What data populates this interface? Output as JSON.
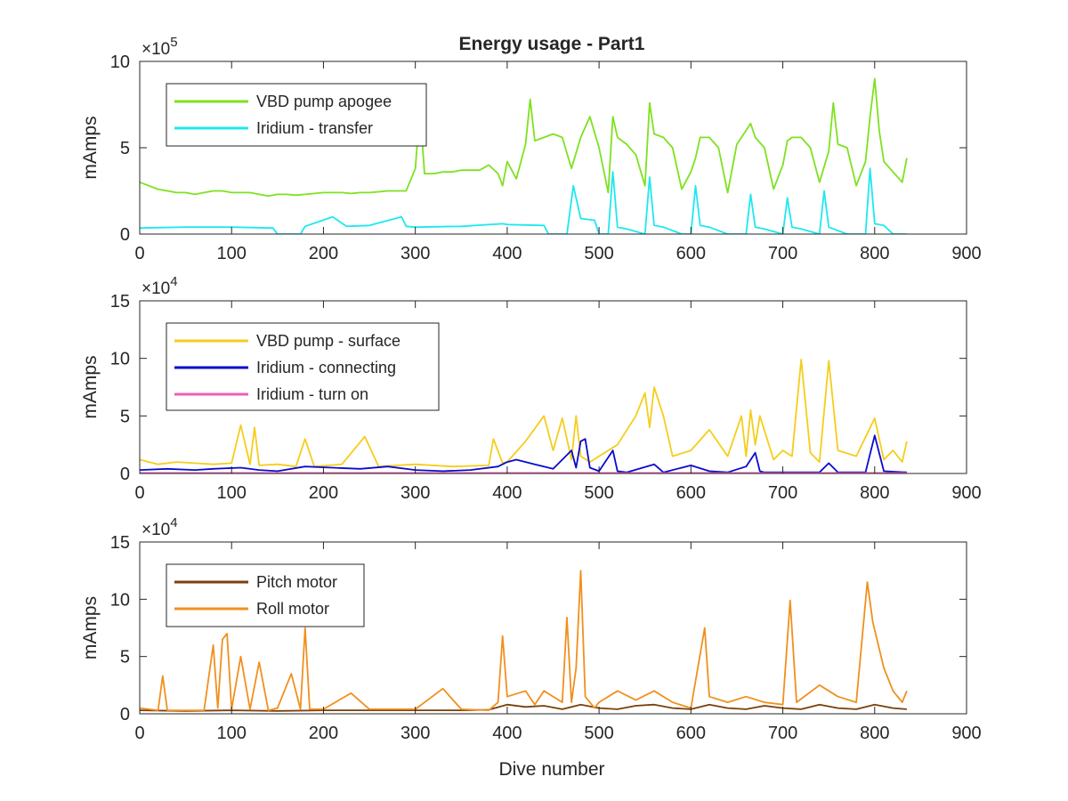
{
  "figure": {
    "title": "Energy usage - Part1",
    "xlabel": "Dive number"
  },
  "chart_data": [
    {
      "type": "line",
      "title": "Energy usage - Part1",
      "xlabel": "",
      "ylabel": "mAmps",
      "xlim": [
        0,
        900
      ],
      "ylim": [
        0,
        1000000
      ],
      "xticks": [
        0,
        100,
        200,
        300,
        400,
        500,
        600,
        700,
        800,
        900
      ],
      "yticks": [
        0,
        500000,
        1000000
      ],
      "ytick_labels": [
        "0",
        "5",
        "10"
      ],
      "y_multiplier": {
        "base": "×10",
        "exponent": "5"
      },
      "grid": false,
      "legend_position": "top-left",
      "series": [
        {
          "name": "VBD pump apogee",
          "color": "#7de21f",
          "x": [
            0,
            10,
            20,
            30,
            40,
            50,
            60,
            70,
            80,
            90,
            100,
            110,
            120,
            130,
            140,
            150,
            160,
            170,
            180,
            190,
            200,
            210,
            220,
            230,
            240,
            250,
            260,
            270,
            280,
            290,
            300,
            305,
            310,
            320,
            330,
            340,
            350,
            360,
            370,
            380,
            390,
            395,
            400,
            410,
            420,
            425,
            430,
            440,
            450,
            460,
            470,
            480,
            490,
            500,
            510,
            515,
            520,
            530,
            540,
            550,
            555,
            560,
            570,
            580,
            590,
            600,
            605,
            610,
            620,
            630,
            640,
            650,
            660,
            665,
            670,
            680,
            690,
            700,
            705,
            710,
            720,
            730,
            740,
            750,
            755,
            760,
            770,
            780,
            790,
            795,
            800,
            805,
            810,
            820,
            830,
            835
          ],
          "values": [
            300000,
            280000,
            260000,
            250000,
            240000,
            240000,
            230000,
            240000,
            250000,
            250000,
            240000,
            240000,
            240000,
            230000,
            220000,
            230000,
            230000,
            225000,
            230000,
            235000,
            240000,
            240000,
            240000,
            235000,
            240000,
            240000,
            245000,
            250000,
            250000,
            250000,
            380000,
            730000,
            350000,
            350000,
            360000,
            360000,
            370000,
            370000,
            370000,
            400000,
            350000,
            280000,
            420000,
            320000,
            520000,
            780000,
            540000,
            560000,
            580000,
            560000,
            380000,
            560000,
            680000,
            500000,
            240000,
            680000,
            560000,
            520000,
            460000,
            280000,
            760000,
            580000,
            560000,
            500000,
            260000,
            360000,
            440000,
            560000,
            560000,
            500000,
            240000,
            520000,
            600000,
            640000,
            560000,
            500000,
            260000,
            400000,
            540000,
            560000,
            560000,
            500000,
            300000,
            480000,
            760000,
            520000,
            500000,
            280000,
            420000,
            680000,
            900000,
            600000,
            420000,
            360000,
            300000,
            440000
          ]
        },
        {
          "name": "Iridium - transfer",
          "color": "#1de8f0",
          "x": [
            0,
            50,
            100,
            145,
            150,
            175,
            180,
            210,
            225,
            250,
            285,
            290,
            300,
            350,
            395,
            400,
            440,
            445,
            465,
            472,
            480,
            495,
            500,
            510,
            515,
            520,
            530,
            550,
            555,
            560,
            570,
            590,
            600,
            605,
            610,
            620,
            640,
            660,
            665,
            670,
            680,
            700,
            705,
            710,
            720,
            740,
            745,
            750,
            770,
            790,
            795,
            800,
            810,
            820,
            830,
            835
          ],
          "values": [
            35000,
            40000,
            40000,
            35000,
            0,
            0,
            45000,
            100000,
            45000,
            50000,
            100000,
            45000,
            40000,
            45000,
            60000,
            55000,
            50000,
            0,
            0,
            280000,
            90000,
            80000,
            0,
            0,
            360000,
            40000,
            30000,
            0,
            330000,
            50000,
            40000,
            0,
            0,
            280000,
            50000,
            40000,
            0,
            0,
            230000,
            40000,
            30000,
            0,
            210000,
            40000,
            30000,
            0,
            250000,
            40000,
            0,
            0,
            380000,
            60000,
            50000,
            0,
            0,
            0
          ]
        }
      ]
    },
    {
      "type": "line",
      "xlabel": "",
      "ylabel": "mAmps",
      "xlim": [
        0,
        900
      ],
      "ylim": [
        0,
        150000
      ],
      "xticks": [
        0,
        100,
        200,
        300,
        400,
        500,
        600,
        700,
        800,
        900
      ],
      "yticks": [
        0,
        50000,
        100000,
        150000
      ],
      "ytick_labels": [
        "0",
        "5",
        "10",
        "15"
      ],
      "y_multiplier": {
        "base": "×10",
        "exponent": "4"
      },
      "grid": false,
      "legend_position": "top-left",
      "series": [
        {
          "name": "VBD pump - surface",
          "color": "#f5cd1c",
          "x": [
            0,
            20,
            40,
            60,
            80,
            100,
            110,
            120,
            125,
            130,
            150,
            170,
            180,
            190,
            220,
            245,
            260,
            300,
            340,
            380,
            385,
            395,
            400,
            420,
            440,
            450,
            460,
            470,
            475,
            480,
            490,
            500,
            520,
            540,
            550,
            555,
            560,
            570,
            580,
            600,
            620,
            640,
            655,
            660,
            665,
            670,
            675,
            690,
            700,
            710,
            720,
            730,
            740,
            750,
            760,
            780,
            800,
            810,
            820,
            830,
            835
          ],
          "values": [
            12000,
            8000,
            10000,
            9000,
            8000,
            9000,
            42000,
            8000,
            40000,
            7000,
            8000,
            6000,
            30000,
            6000,
            8000,
            32000,
            6000,
            8000,
            6000,
            7000,
            30000,
            9000,
            10000,
            28000,
            50000,
            20000,
            48000,
            12000,
            50000,
            15000,
            10000,
            15000,
            25000,
            50000,
            70000,
            40000,
            75000,
            50000,
            15000,
            20000,
            38000,
            15000,
            50000,
            15000,
            55000,
            25000,
            50000,
            12000,
            20000,
            15000,
            99000,
            18000,
            10000,
            98000,
            20000,
            15000,
            48000,
            12000,
            20000,
            10000,
            28000
          ]
        },
        {
          "name": "Iridium - connecting",
          "color": "#0a0ad0",
          "x": [
            0,
            30,
            60,
            80,
            110,
            130,
            150,
            180,
            210,
            240,
            270,
            300,
            330,
            360,
            390,
            400,
            410,
            430,
            450,
            470,
            475,
            480,
            485,
            490,
            500,
            515,
            520,
            530,
            560,
            570,
            600,
            620,
            640,
            660,
            670,
            675,
            680,
            700,
            740,
            750,
            760,
            790,
            800,
            810,
            835
          ],
          "values": [
            3000,
            4000,
            3000,
            4000,
            5000,
            3000,
            2000,
            6000,
            5000,
            4000,
            6000,
            3000,
            2000,
            3000,
            6000,
            10000,
            12000,
            8000,
            4000,
            20000,
            5000,
            28000,
            30000,
            5000,
            2000,
            20000,
            2000,
            1000,
            8000,
            1000,
            7000,
            2000,
            1000,
            6000,
            18000,
            2000,
            1000,
            1000,
            1000,
            9000,
            1000,
            1000,
            33000,
            2000,
            1000
          ]
        },
        {
          "name": "Iridium - turn on",
          "color": "#ee5fb6",
          "x": [
            0,
            100,
            200,
            300,
            400,
            500,
            600,
            700,
            800,
            835
          ],
          "values": [
            500,
            500,
            500,
            500,
            500,
            500,
            500,
            500,
            500,
            500
          ]
        }
      ]
    },
    {
      "type": "line",
      "xlabel": "Dive number",
      "ylabel": "mAmps",
      "xlim": [
        0,
        900
      ],
      "ylim": [
        0,
        150000
      ],
      "xticks": [
        0,
        100,
        200,
        300,
        400,
        500,
        600,
        700,
        800,
        900
      ],
      "yticks": [
        0,
        50000,
        100000,
        150000
      ],
      "ytick_labels": [
        "0",
        "5",
        "10",
        "15"
      ],
      "y_multiplier": {
        "base": "×10",
        "exponent": "4"
      },
      "grid": false,
      "legend_position": "top-left",
      "series": [
        {
          "name": "Pitch motor",
          "color": "#7a3f0a",
          "x": [
            0,
            50,
            100,
            150,
            200,
            250,
            300,
            350,
            380,
            400,
            420,
            440,
            460,
            480,
            500,
            520,
            540,
            560,
            580,
            600,
            620,
            640,
            660,
            680,
            700,
            720,
            740,
            760,
            780,
            800,
            820,
            835
          ],
          "values": [
            3000,
            2500,
            3000,
            2500,
            3000,
            3000,
            3000,
            3000,
            3500,
            8000,
            6000,
            7000,
            4000,
            8000,
            5000,
            4000,
            7000,
            8000,
            5000,
            4000,
            8000,
            5000,
            4000,
            7000,
            5000,
            4000,
            8000,
            5000,
            4000,
            8000,
            5000,
            4000
          ]
        },
        {
          "name": "Roll motor",
          "color": "#f0901e",
          "x": [
            0,
            20,
            25,
            30,
            50,
            70,
            80,
            85,
            90,
            95,
            100,
            110,
            120,
            130,
            140,
            150,
            165,
            175,
            180,
            185,
            200,
            230,
            250,
            300,
            330,
            350,
            380,
            390,
            395,
            400,
            420,
            430,
            440,
            460,
            465,
            470,
            475,
            480,
            485,
            495,
            500,
            520,
            540,
            560,
            580,
            600,
            615,
            620,
            640,
            660,
            680,
            700,
            708,
            715,
            740,
            760,
            780,
            792,
            798,
            810,
            820,
            830,
            835
          ],
          "values": [
            5000,
            3000,
            33000,
            3000,
            3000,
            3000,
            60000,
            5000,
            65000,
            70000,
            4000,
            50000,
            4000,
            45000,
            3000,
            5000,
            35000,
            4000,
            75000,
            4000,
            4000,
            18000,
            4000,
            4000,
            22000,
            4000,
            3000,
            10000,
            68000,
            15000,
            20000,
            8000,
            20000,
            10000,
            84000,
            10000,
            40000,
            125000,
            15000,
            5000,
            10000,
            20000,
            12000,
            20000,
            10000,
            5000,
            75000,
            15000,
            10000,
            15000,
            10000,
            8000,
            99000,
            10000,
            25000,
            15000,
            10000,
            115000,
            80000,
            40000,
            20000,
            10000,
            20000
          ]
        }
      ]
    }
  ]
}
